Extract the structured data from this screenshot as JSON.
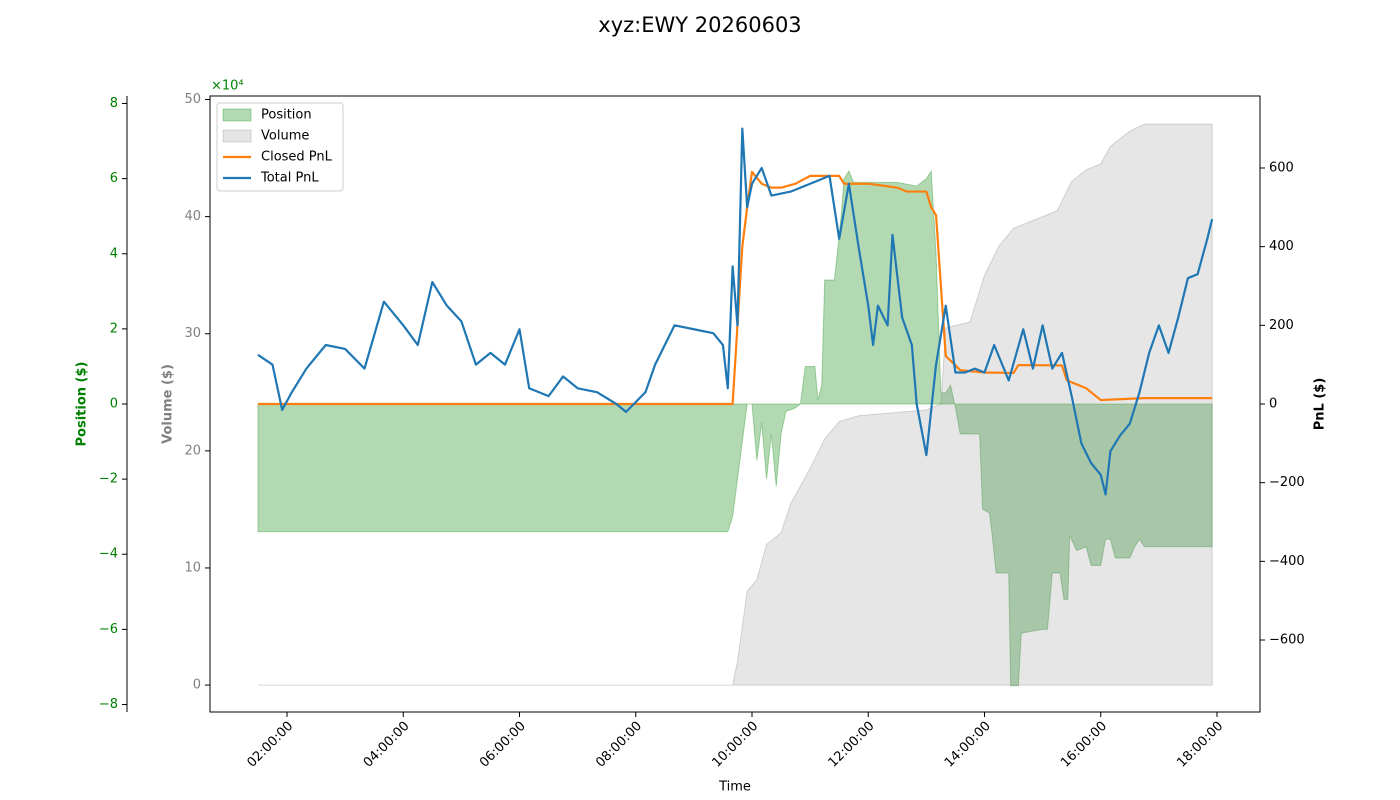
{
  "chart_data": {
    "type": "line",
    "title": "xyz:EWY 20260603",
    "xlabel": "Time",
    "ylabel": "Volume ($)",
    "y2label": "PnL ($)",
    "y3label": "Position ($)",
    "y3_offset": "×10⁴",
    "legend": "upper left",
    "xlim": [
      "00:40:30",
      "18:44:24"
    ],
    "xticks": [
      "02:00:00",
      "04:00:00",
      "06:00:00",
      "08:00:00",
      "10:00:00",
      "12:00:00",
      "14:00:00",
      "16:00:00",
      "18:00:00"
    ],
    "ylim": [
      -2.3,
      50.3
    ],
    "yticks": [
      0,
      10,
      20,
      30,
      40,
      50
    ],
    "y2lim": [
      -783,
      783
    ],
    "y2ticks": [
      {
        "value": -600,
        "label": "−600"
      },
      {
        "value": -400,
        "label": "−400"
      },
      {
        "value": -200,
        "label": "−200"
      },
      0,
      200,
      400,
      600
    ],
    "y3lim": [
      -8.2,
      8.2
    ],
    "y3ticks": [
      {
        "value": -8,
        "label": "−8"
      },
      {
        "value": -6,
        "label": "−6"
      },
      {
        "value": -4,
        "label": "−4"
      },
      {
        "value": -2,
        "label": "−2"
      },
      0,
      2,
      4,
      6,
      8
    ],
    "series": [
      {
        "name": "Position",
        "kind": "area",
        "axis": "y3",
        "color": "#008000",
        "x": [
          "01:30",
          "09:35",
          "09:40",
          "09:45",
          "09:50",
          "09:55",
          "10:00",
          "10:05",
          "10:10",
          "10:15",
          "10:20",
          "10:25",
          "10:30",
          "10:35",
          "10:45",
          "10:50",
          "10:55",
          "11:05",
          "11:08",
          "11:12",
          "11:15",
          "11:25",
          "11:28",
          "11:32",
          "11:35",
          "11:40",
          "11:45",
          "12:30",
          "12:50",
          "13:00",
          "13:05",
          "13:10",
          "13:15",
          "13:20",
          "13:25",
          "13:30",
          "13:35",
          "13:55",
          "13:58",
          "14:05",
          "14:08",
          "14:12",
          "14:15",
          "14:25",
          "14:27",
          "14:35",
          "14:38",
          "15:00",
          "15:05",
          "15:10",
          "15:18",
          "15:22",
          "15:26",
          "15:28",
          "15:35",
          "15:45",
          "15:50",
          "16:00",
          "16:05",
          "16:10",
          "16:15",
          "16:30",
          "16:35",
          "16:40",
          "16:45",
          "17:55"
        ],
        "values": [
          -3.4,
          -3.4,
          -3.0,
          -2.0,
          -1.0,
          0.0,
          0.0,
          -1.5,
          -0.5,
          -2.0,
          -0.8,
          -2.2,
          -0.8,
          -0.2,
          -0.1,
          0.0,
          1.0,
          1.0,
          0.1,
          0.5,
          3.3,
          3.3,
          4.0,
          5.0,
          6.0,
          6.2,
          5.9,
          5.9,
          5.8,
          6.0,
          6.2,
          4.0,
          0.3,
          0.3,
          0.5,
          -0.1,
          -0.8,
          -0.8,
          -2.8,
          -2.9,
          -3.5,
          -4.5,
          -4.5,
          -4.5,
          -7.5,
          -7.5,
          -6.1,
          -6.0,
          -6.0,
          -4.5,
          -4.5,
          -5.2,
          -5.2,
          -3.5,
          -3.9,
          -3.8,
          -4.3,
          -4.3,
          -3.6,
          -3.6,
          -4.1,
          -4.1,
          -3.8,
          -3.6,
          -3.8,
          -3.8
        ]
      },
      {
        "name": "Volume",
        "kind": "area",
        "axis": "y",
        "color": "#808080",
        "x": [
          "01:30",
          "09:40",
          "09:45",
          "09:50",
          "09:55",
          "10:05",
          "10:15",
          "10:30",
          "10:40",
          "11:00",
          "11:15",
          "11:30",
          "11:50",
          "13:00",
          "13:15",
          "13:20",
          "13:45",
          "14:00",
          "14:15",
          "14:30",
          "15:00",
          "15:15",
          "15:30",
          "15:45",
          "16:00",
          "16:10",
          "16:30",
          "16:45",
          "17:55"
        ],
        "values": [
          0,
          0,
          2,
          5,
          8,
          9,
          12,
          13,
          15.5,
          18.5,
          21,
          22.5,
          23,
          23.5,
          24,
          30.5,
          31,
          35,
          37.5,
          39,
          40,
          40.5,
          43,
          44,
          44.5,
          46,
          47.3,
          47.9,
          47.9
        ]
      },
      {
        "name": "Closed PnL",
        "kind": "line",
        "axis": "y2",
        "color": "#ff7f0e",
        "x": [
          "01:30",
          "09:40",
          "09:45",
          "09:50",
          "09:55",
          "10:00",
          "10:10",
          "10:20",
          "10:30",
          "10:45",
          "11:00",
          "11:30",
          "11:35",
          "12:00",
          "12:30",
          "12:40",
          "13:00",
          "13:05",
          "13:10",
          "13:15",
          "13:20",
          "13:35",
          "14:00",
          "14:30",
          "14:35",
          "15:20",
          "15:25",
          "15:45",
          "16:00",
          "16:45",
          "17:55"
        ],
        "values": [
          0,
          0,
          200,
          400,
          500,
          590,
          560,
          550,
          550,
          560,
          580,
          580,
          560,
          560,
          550,
          540,
          540,
          500,
          480,
          300,
          122,
          86,
          80,
          79,
          99,
          98,
          60,
          40,
          10,
          15,
          15
        ]
      },
      {
        "name": "Total PnL",
        "kind": "line",
        "axis": "y2",
        "color": "#1f77b4",
        "x": [
          "01:30",
          "01:45",
          "01:55",
          "02:05",
          "02:20",
          "02:40",
          "03:00",
          "03:20",
          "03:40",
          "04:00",
          "04:15",
          "04:30",
          "04:45",
          "05:00",
          "05:15",
          "05:30",
          "05:45",
          "06:00",
          "06:10",
          "06:30",
          "06:45",
          "07:00",
          "07:20",
          "07:40",
          "07:50",
          "08:10",
          "08:20",
          "08:40",
          "09:00",
          "09:20",
          "09:30",
          "09:35",
          "09:40",
          "09:45",
          "09:50",
          "09:55",
          "10:00",
          "10:10",
          "10:20",
          "10:40",
          "11:00",
          "11:20",
          "11:30",
          "11:40",
          "11:50",
          "12:00",
          "12:05",
          "12:10",
          "12:20",
          "12:25",
          "12:35",
          "12:45",
          "12:50",
          "13:00",
          "13:10",
          "13:20",
          "13:30",
          "13:40",
          "13:50",
          "14:00",
          "14:10",
          "14:25",
          "14:40",
          "14:50",
          "15:00",
          "15:10",
          "15:20",
          "15:30",
          "15:40",
          "15:50",
          "16:00",
          "16:05",
          "16:10",
          "16:20",
          "16:30",
          "16:40",
          "16:50",
          "17:00",
          "17:10",
          "17:20",
          "17:30",
          "17:40",
          "17:50",
          "17:55"
        ],
        "values": [
          125,
          100,
          -15,
          30,
          90,
          150,
          140,
          90,
          260,
          200,
          150,
          310,
          250,
          210,
          100,
          130,
          100,
          190,
          40,
          20,
          70,
          40,
          30,
          0,
          -20,
          30,
          100,
          200,
          190,
          180,
          150,
          40,
          350,
          200,
          700,
          500,
          560,
          600,
          530,
          540,
          560,
          580,
          420,
          560,
          400,
          250,
          150,
          250,
          200,
          430,
          220,
          150,
          0,
          -130,
          100,
          250,
          80,
          80,
          90,
          80,
          150,
          60,
          190,
          90,
          200,
          90,
          130,
          20,
          -100,
          -150,
          -180,
          -230,
          -120,
          -80,
          -50,
          30,
          130,
          200,
          130,
          220,
          320,
          330,
          420,
          470
        ]
      }
    ]
  }
}
